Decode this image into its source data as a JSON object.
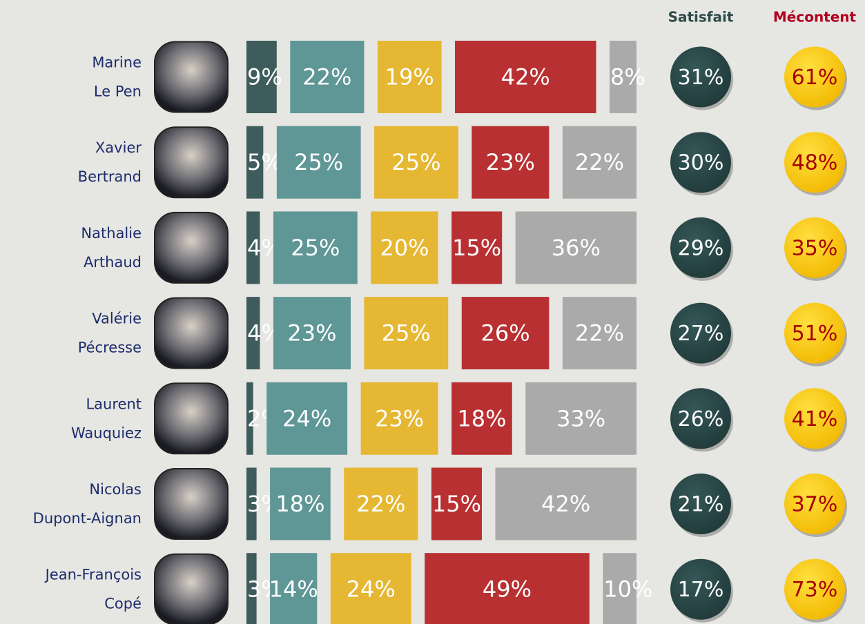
{
  "chart_data": {
    "type": "bar",
    "orientation": "horizontal",
    "stacked": true,
    "categories": [
      [
        "Marine",
        "Le Pen"
      ],
      [
        "Xavier",
        "Bertrand"
      ],
      [
        "Nathalie",
        "Arthaud"
      ],
      [
        "Valérie",
        "Pécresse"
      ],
      [
        "Laurent",
        "Wauquiez"
      ],
      [
        "Nicolas",
        "Dupont-Aignan"
      ],
      [
        "Jean-François",
        "Copé"
      ]
    ],
    "series": [
      {
        "color": "#3e5c5c",
        "values": [
          9,
          5,
          4,
          4,
          2,
          3,
          3
        ],
        "value_labels": [
          "9%",
          "5%",
          "4%",
          "4%",
          "2%",
          "3%",
          "3%"
        ]
      },
      {
        "color": "#5f9696",
        "values": [
          22,
          25,
          25,
          23,
          24,
          18,
          14
        ],
        "value_labels": [
          "22%",
          "25%",
          "25%",
          "23%",
          "24%",
          "18%",
          "14%"
        ]
      },
      {
        "color": "#e5b732",
        "values": [
          19,
          25,
          20,
          25,
          23,
          22,
          24
        ],
        "value_labels": [
          "19%",
          "25%",
          "20%",
          "25%",
          "23%",
          "22%",
          "24%"
        ]
      },
      {
        "color": "#b93032",
        "values": [
          42,
          23,
          15,
          26,
          18,
          15,
          49
        ],
        "value_labels": [
          "42%",
          "23%",
          "15%",
          "26%",
          "18%",
          "15%",
          "49%"
        ]
      },
      {
        "color": "#aaaaaa",
        "values": [
          8,
          22,
          36,
          22,
          33,
          42,
          10
        ],
        "value_labels": [
          "8%",
          "22%",
          "36%",
          "22%",
          "33%",
          "42%",
          "10%"
        ]
      }
    ],
    "totals": [
      {
        "name": "Satisfait",
        "color": "#2d4b4b",
        "text_color": "#ffffff",
        "values": [
          31,
          30,
          29,
          27,
          26,
          21,
          17
        ],
        "value_labels": [
          "31%",
          "30%",
          "29%",
          "27%",
          "26%",
          "21%",
          "17%"
        ]
      },
      {
        "name": "Mécontent",
        "color": "#ffd200",
        "text_color": "#a80000",
        "values": [
          61,
          48,
          35,
          51,
          41,
          37,
          73
        ],
        "value_labels": [
          "61%",
          "48%",
          "35%",
          "51%",
          "41%",
          "37%",
          "73%"
        ]
      }
    ]
  }
}
